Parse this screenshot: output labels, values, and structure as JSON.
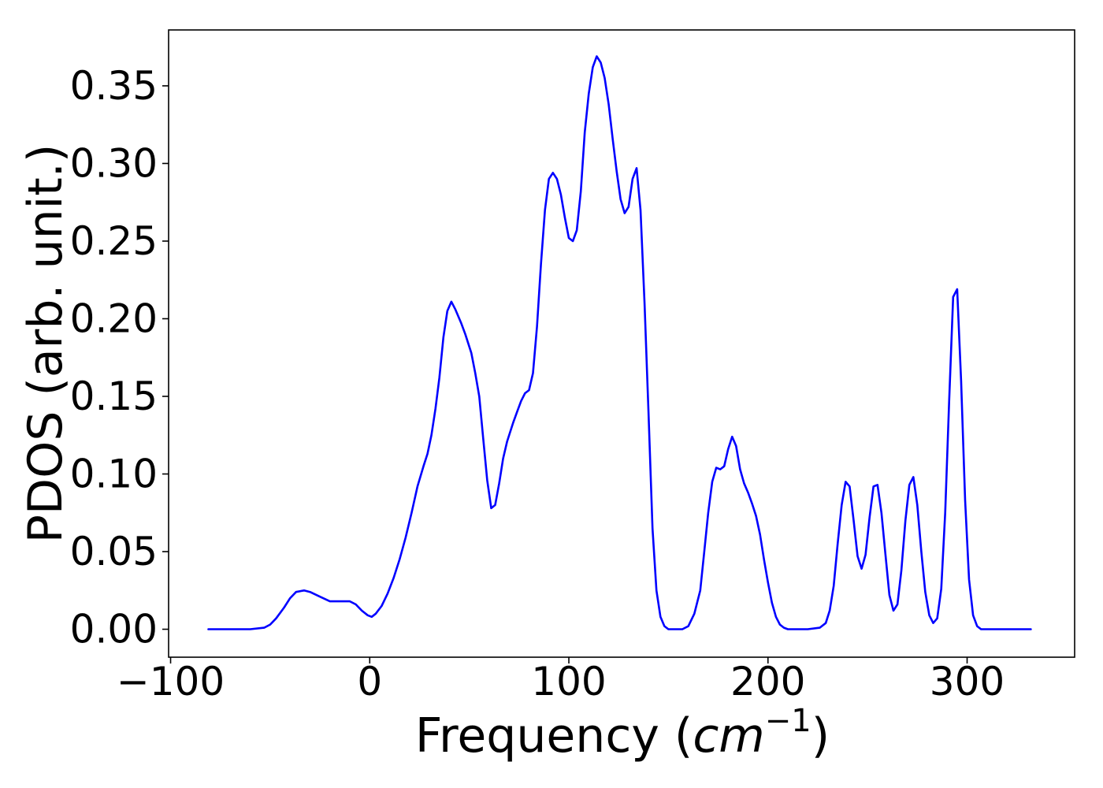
{
  "chart_data": {
    "type": "line",
    "title": "",
    "xlabel": "Frequency (",
    "xlabel_math_base": "cm",
    "xlabel_math_sup": "−1",
    "xlabel_close": ")",
    "ylabel": "PDOS (arb. unit.)",
    "xlim": [
      -101,
      354
    ],
    "ylim": [
      -0.018,
      0.386
    ],
    "xticks": [
      -100,
      0,
      100,
      200,
      300
    ],
    "xtick_labels": [
      "−100",
      "0",
      "100",
      "200",
      "300"
    ],
    "yticks": [
      0.0,
      0.05,
      0.1,
      0.15,
      0.2,
      0.25,
      0.3,
      0.35
    ],
    "ytick_labels": [
      "0.00",
      "0.05",
      "0.10",
      "0.15",
      "0.20",
      "0.25",
      "0.30",
      "0.35"
    ],
    "grid": false,
    "legend": "none",
    "series": [
      {
        "color": "#0000ff",
        "x": [
          -81,
          -60,
          -53,
          -50,
          -47,
          -43,
          -40,
          -37,
          -33,
          -30,
          -25,
          -20,
          -15,
          -10,
          -7,
          -4,
          -1,
          1,
          3,
          6,
          9,
          12,
          15,
          18,
          21,
          24,
          27,
          29,
          31,
          33,
          35,
          37,
          39,
          41,
          43,
          46,
          48,
          51,
          53,
          55,
          57,
          59,
          61,
          63,
          65,
          67,
          69,
          72,
          74,
          76,
          78,
          80,
          82,
          84,
          86,
          88,
          90,
          92,
          94,
          96,
          98,
          100,
          102,
          104,
          106,
          108,
          110,
          112,
          114,
          116,
          118,
          120,
          122,
          124,
          126,
          128,
          130,
          132,
          134,
          136,
          138,
          140,
          142,
          144,
          146,
          148,
          150,
          152,
          154,
          157,
          160,
          163,
          166,
          168,
          170,
          172,
          174,
          176,
          178,
          180,
          182,
          184,
          186,
          188,
          190,
          192,
          194,
          196,
          198,
          200,
          202,
          204,
          206,
          208,
          210,
          213,
          220,
          226,
          229,
          231,
          233,
          235,
          237,
          239,
          241,
          243,
          245,
          247,
          249,
          251,
          253,
          255,
          257,
          259,
          261,
          263,
          265,
          267,
          269,
          271,
          273,
          275,
          277,
          279,
          281,
          283,
          285,
          287,
          289,
          291,
          293,
          295,
          297,
          299,
          301,
          303,
          305,
          307,
          310,
          320,
          332
        ],
        "y": [
          0.0,
          0.0,
          0.001,
          0.003,
          0.007,
          0.014,
          0.02,
          0.024,
          0.025,
          0.024,
          0.021,
          0.018,
          0.018,
          0.018,
          0.016,
          0.012,
          0.009,
          0.008,
          0.01,
          0.015,
          0.023,
          0.033,
          0.045,
          0.059,
          0.075,
          0.092,
          0.105,
          0.113,
          0.125,
          0.142,
          0.162,
          0.188,
          0.205,
          0.211,
          0.206,
          0.197,
          0.19,
          0.178,
          0.165,
          0.15,
          0.123,
          0.096,
          0.078,
          0.08,
          0.094,
          0.11,
          0.121,
          0.133,
          0.14,
          0.147,
          0.152,
          0.154,
          0.165,
          0.195,
          0.235,
          0.27,
          0.29,
          0.294,
          0.29,
          0.28,
          0.265,
          0.252,
          0.25,
          0.257,
          0.282,
          0.32,
          0.345,
          0.362,
          0.369,
          0.365,
          0.355,
          0.338,
          0.316,
          0.295,
          0.277,
          0.268,
          0.272,
          0.29,
          0.297,
          0.27,
          0.21,
          0.14,
          0.065,
          0.025,
          0.008,
          0.002,
          0.0,
          0.0,
          0.0,
          0.0,
          0.002,
          0.01,
          0.025,
          0.05,
          0.075,
          0.095,
          0.104,
          0.103,
          0.105,
          0.116,
          0.124,
          0.118,
          0.103,
          0.094,
          0.088,
          0.081,
          0.073,
          0.061,
          0.045,
          0.03,
          0.017,
          0.008,
          0.003,
          0.001,
          0.0,
          0.0,
          0.0,
          0.001,
          0.004,
          0.012,
          0.028,
          0.055,
          0.08,
          0.095,
          0.092,
          0.07,
          0.047,
          0.039,
          0.048,
          0.072,
          0.092,
          0.093,
          0.075,
          0.048,
          0.022,
          0.012,
          0.016,
          0.038,
          0.07,
          0.093,
          0.098,
          0.08,
          0.05,
          0.024,
          0.009,
          0.004,
          0.007,
          0.026,
          0.075,
          0.148,
          0.214,
          0.219,
          0.16,
          0.083,
          0.032,
          0.009,
          0.002,
          0.0,
          0.0,
          0.0,
          0.0
        ]
      }
    ]
  }
}
